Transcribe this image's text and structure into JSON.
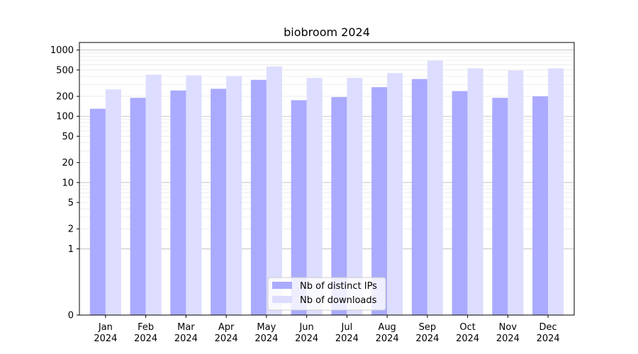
{
  "chart_data": {
    "type": "bar",
    "title": "biobroom 2024",
    "xlabel": "",
    "ylabel": "",
    "yscale": "symlog",
    "ylim": [
      0,
      1300
    ],
    "yticks": [
      0,
      1,
      2,
      5,
      10,
      20,
      50,
      100,
      200,
      500,
      1000
    ],
    "ytick_labels": [
      "0",
      "1",
      "2",
      "5",
      "10",
      "20",
      "50",
      "100",
      "200",
      "500",
      "1000"
    ],
    "grid": true,
    "legend_position": "bottom-center",
    "categories": [
      "Jan\n2024",
      "Feb\n2024",
      "Mar\n2024",
      "Apr\n2024",
      "May\n2024",
      "Jun\n2024",
      "Jul\n2024",
      "Aug\n2024",
      "Sep\n2024",
      "Oct\n2024",
      "Nov\n2024",
      "Dec\n2024"
    ],
    "series": [
      {
        "name": "Nb of distinct IPs",
        "color": "#aaaaff",
        "values": [
          130,
          190,
          245,
          260,
          355,
          175,
          195,
          275,
          365,
          240,
          190,
          200
        ]
      },
      {
        "name": "Nb of downloads",
        "color": "#ddddff",
        "values": [
          255,
          425,
          415,
          405,
          565,
          380,
          380,
          450,
          690,
          530,
          490,
          530
        ]
      }
    ]
  }
}
